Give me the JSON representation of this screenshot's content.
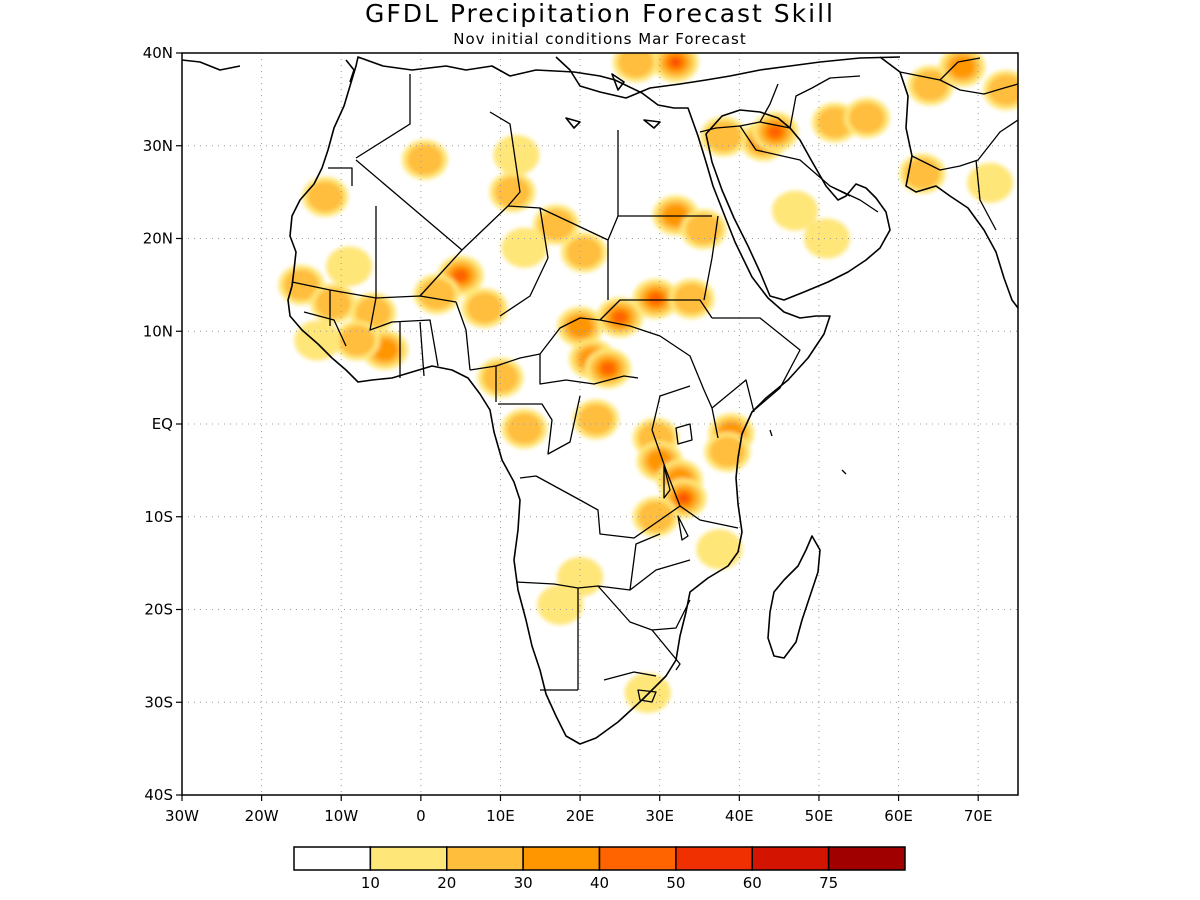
{
  "title": "GFDL Precipitation Forecast Skill",
  "subtitle": "Nov initial conditions  Mar Forecast",
  "map": {
    "region": "Africa and Middle East",
    "lon_range": [
      -30,
      75
    ],
    "lat_range": [
      -40,
      40
    ],
    "gridlines": true
  },
  "axes": {
    "y_ticks": [
      {
        "value": 40,
        "label": "40N"
      },
      {
        "value": 30,
        "label": "30N"
      },
      {
        "value": 20,
        "label": "20N"
      },
      {
        "value": 10,
        "label": "10N"
      },
      {
        "value": 0,
        "label": "EQ"
      },
      {
        "value": -10,
        "label": "10S"
      },
      {
        "value": -20,
        "label": "20S"
      },
      {
        "value": -30,
        "label": "30S"
      },
      {
        "value": -40,
        "label": "40S"
      }
    ],
    "x_ticks": [
      {
        "value": -30,
        "label": "30W"
      },
      {
        "value": -20,
        "label": "20W"
      },
      {
        "value": -10,
        "label": "10W"
      },
      {
        "value": 0,
        "label": "0"
      },
      {
        "value": 10,
        "label": "10E"
      },
      {
        "value": 20,
        "label": "20E"
      },
      {
        "value": 30,
        "label": "30E"
      },
      {
        "value": 40,
        "label": "40E"
      },
      {
        "value": 50,
        "label": "50E"
      },
      {
        "value": 60,
        "label": "60E"
      },
      {
        "value": 70,
        "label": "70E"
      }
    ]
  },
  "colorbar": {
    "colors": [
      "#ffffff",
      "#ffe678",
      "#ffbe3c",
      "#ff9600",
      "#ff6400",
      "#f03000",
      "#d21400",
      "#a00000"
    ],
    "labels": [
      "10",
      "20",
      "30",
      "40",
      "50",
      "60",
      "75"
    ]
  },
  "skill_patches": [
    {
      "lon": 0.5,
      "lat": 28.5,
      "level": 2
    },
    {
      "lon": 11.5,
      "lat": 25.0,
      "level": 2
    },
    {
      "lon": 12.0,
      "lat": 29.0,
      "level": 1
    },
    {
      "lon": -12.0,
      "lat": 24.5,
      "level": 2
    },
    {
      "lon": -9.0,
      "lat": 17.0,
      "level": 1
    },
    {
      "lon": 17.0,
      "lat": 21.5,
      "level": 2
    },
    {
      "lon": 20.5,
      "lat": 18.5,
      "level": 2
    },
    {
      "lon": 13.0,
      "lat": 19.0,
      "level": 1
    },
    {
      "lon": 5.0,
      "lat": 16.0,
      "level": 4
    },
    {
      "lon": 2.0,
      "lat": 14.0,
      "level": 2
    },
    {
      "lon": 8.0,
      "lat": 12.5,
      "level": 2
    },
    {
      "lon": -15.0,
      "lat": 15.0,
      "level": 2
    },
    {
      "lon": -11.0,
      "lat": 13.0,
      "level": 2
    },
    {
      "lon": -6.0,
      "lat": 12.0,
      "level": 2
    },
    {
      "lon": -4.5,
      "lat": 8.0,
      "level": 3
    },
    {
      "lon": -8.0,
      "lat": 9.0,
      "level": 2
    },
    {
      "lon": -13.0,
      "lat": 9.0,
      "level": 1
    },
    {
      "lon": 10.0,
      "lat": 5.0,
      "level": 2
    },
    {
      "lon": 20.0,
      "lat": 10.5,
      "level": 3
    },
    {
      "lon": 25.0,
      "lat": 11.5,
      "level": 4
    },
    {
      "lon": 21.5,
      "lat": 7.0,
      "level": 3
    },
    {
      "lon": 23.5,
      "lat": 6.0,
      "level": 4
    },
    {
      "lon": 29.5,
      "lat": 13.5,
      "level": 4
    },
    {
      "lon": 34.0,
      "lat": 13.5,
      "level": 2
    },
    {
      "lon": 32.0,
      "lat": 22.5,
      "level": 3
    },
    {
      "lon": 35.5,
      "lat": 21.0,
      "level": 2
    },
    {
      "lon": 32.0,
      "lat": 39.0,
      "level": 5
    },
    {
      "lon": 27.0,
      "lat": 39.0,
      "level": 2
    },
    {
      "lon": 43.0,
      "lat": 30.5,
      "level": 3
    },
    {
      "lon": 44.5,
      "lat": 31.5,
      "level": 4
    },
    {
      "lon": 38.0,
      "lat": 31.0,
      "level": 2
    },
    {
      "lon": 52.0,
      "lat": 32.5,
      "level": 2
    },
    {
      "lon": 56.0,
      "lat": 33.0,
      "level": 2
    },
    {
      "lon": 64.0,
      "lat": 36.5,
      "level": 2
    },
    {
      "lon": 68.0,
      "lat": 38.5,
      "level": 3
    },
    {
      "lon": 73.5,
      "lat": 36.0,
      "level": 2
    },
    {
      "lon": 63.0,
      "lat": 27.0,
      "level": 2
    },
    {
      "lon": 71.5,
      "lat": 26.0,
      "level": 1
    },
    {
      "lon": 47.0,
      "lat": 23.0,
      "level": 1
    },
    {
      "lon": 51.0,
      "lat": 20.0,
      "level": 1
    },
    {
      "lon": 22.0,
      "lat": 0.5,
      "level": 2
    },
    {
      "lon": 13.0,
      "lat": -0.5,
      "level": 2
    },
    {
      "lon": 29.5,
      "lat": -1.5,
      "level": 2
    },
    {
      "lon": 30.0,
      "lat": -4.0,
      "level": 3
    },
    {
      "lon": 32.5,
      "lat": -6.0,
      "level": 3
    },
    {
      "lon": 33.0,
      "lat": -8.0,
      "level": 5
    },
    {
      "lon": 39.0,
      "lat": -1.0,
      "level": 3
    },
    {
      "lon": 38.5,
      "lat": -3.0,
      "level": 2
    },
    {
      "lon": 29.5,
      "lat": -10.0,
      "level": 2
    },
    {
      "lon": 37.5,
      "lat": -13.5,
      "level": 1
    },
    {
      "lon": 20.0,
      "lat": -16.5,
      "level": 1
    },
    {
      "lon": 17.5,
      "lat": -19.5,
      "level": 1
    },
    {
      "lon": 28.5,
      "lat": -29.0,
      "level": 1
    }
  ]
}
